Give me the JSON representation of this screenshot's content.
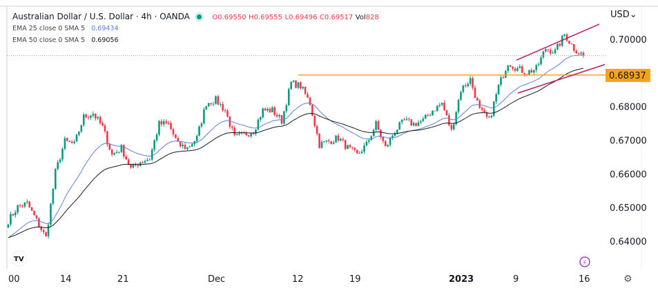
{
  "header": {
    "symbol": "Australian Dollar / U.S. Dollar · 4h · OANDA",
    "ohlc": {
      "o_label": "O",
      "o": "0.69550",
      "h_label": "H",
      "h": "0.69555",
      "l_label": "L",
      "l": "0.69496",
      "c_label": "C",
      "c": "0.69517",
      "vol_label": "Vol",
      "vol": "828"
    },
    "ema25": {
      "label": "EMA 25 close 0 SMA 5",
      "value": "0.69434"
    },
    "ema50": {
      "label": "EMA 50 close 0 SMA 5",
      "value": "0.69056"
    }
  },
  "currency": "USD",
  "icons": [
    "tradingview-logo-icon",
    "lightning-icon",
    "gear-icon",
    "status-dot-icon"
  ],
  "colors": {
    "up": "#089981",
    "down": "#f23645",
    "ema25": "#5b7fd6",
    "ema50": "#131722",
    "level": "#f7a21b",
    "channel": "#c2185b"
  },
  "chart_data": {
    "type": "candlestick",
    "title": "Australian Dollar / U.S. Dollar · 4h · OANDA",
    "ylim": [
      0.6345,
      0.7048
    ],
    "y_ticks": [
      "0.70000",
      "0.68000",
      "0.67000",
      "0.66000",
      "0.65000",
      "0.64000"
    ],
    "x_ticks": [
      "00",
      "14",
      "21",
      "Dec",
      "12",
      "19",
      "2023",
      "9",
      "16"
    ],
    "approx_closes": [
      0.6461,
      0.6502,
      0.6512,
      0.6461,
      0.641,
      0.6605,
      0.6697,
      0.6687,
      0.6769,
      0.678,
      0.6739,
      0.6656,
      0.6677,
      0.6615,
      0.6636,
      0.6646,
      0.6748,
      0.6748,
      0.6687,
      0.6677,
      0.6707,
      0.681,
      0.682,
      0.6789,
      0.6707,
      0.6717,
      0.6728,
      0.6789,
      0.6789,
      0.6758,
      0.6871,
      0.6861,
      0.681,
      0.6687,
      0.6697,
      0.6707,
      0.6677,
      0.6656,
      0.6687,
      0.6748,
      0.6677,
      0.6728,
      0.6758,
      0.6748,
      0.6758,
      0.6789,
      0.681,
      0.6727,
      0.685,
      0.6881,
      0.6789,
      0.6758,
      0.686,
      0.6932,
      0.6912,
      0.6902,
      0.6912,
      0.6973,
      0.6963,
      0.7014,
      0.6973,
      0.6952
    ],
    "level_line": {
      "value": 0.68937,
      "label": "0.68937"
    },
    "last_price": 0.69517,
    "channel": {
      "upper": [
        0.6938,
        0.7045
      ],
      "lower": [
        0.684,
        0.6925
      ]
    },
    "series": [
      {
        "name": "EMA 25 close 0 SMA 5",
        "last": 0.69434
      },
      {
        "name": "EMA 50 close 0 SMA 5",
        "last": 0.69056
      }
    ]
  }
}
